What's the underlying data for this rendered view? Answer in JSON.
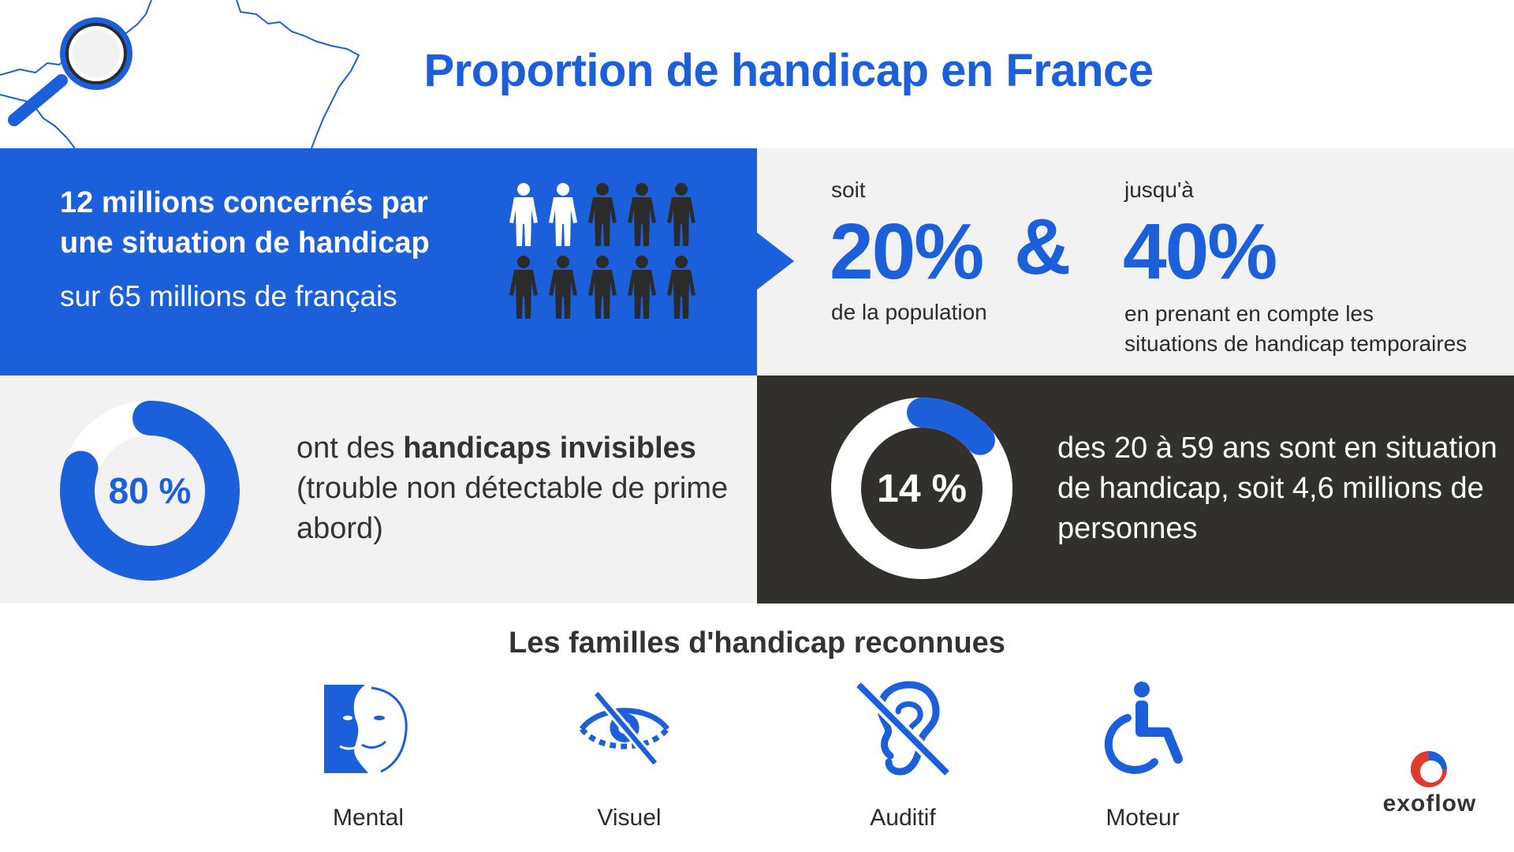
{
  "header": {
    "title": "Proportion de handicap en France",
    "map_icon": "france-map-outline-icon",
    "magnifier_icon": "magnifying-glass-icon"
  },
  "stats": {
    "concerned_line1": "12 millions concernés par",
    "concerned_line2": "une situation de handicap",
    "concerned_sub": "sur 65 millions de français",
    "people_highlighted": 2,
    "people_total": 10,
    "soit_label": "soit",
    "pct_population": "20%",
    "population_label": "de la population",
    "ampersand": "&",
    "jusqua_label": "jusqu'à",
    "pct_temporary": "40%",
    "temporary_line1": "en prenant en compte les",
    "temporary_line2": "situations de handicap temporaires"
  },
  "invisible": {
    "percent_label": "80 %",
    "percent_value": 80,
    "text_before": "ont des ",
    "text_bold": "handicaps invisibles",
    "text_after": "(trouble non détectable de prime abord)"
  },
  "age_group": {
    "percent_label": "14 %",
    "percent_value": 14,
    "text": "des 20 à 59 ans sont en situation de handicap, soit 4,6 millions de personnes"
  },
  "families": {
    "title": "Les familles d'handicap reconnues",
    "items": [
      {
        "label": "Mental",
        "icon": "mental-face-icon"
      },
      {
        "label": "Visuel",
        "icon": "visual-impairment-eye-icon"
      },
      {
        "label": "Auditif",
        "icon": "hearing-impairment-ear-icon"
      },
      {
        "label": "Moteur",
        "icon": "wheelchair-icon"
      }
    ]
  },
  "logo": {
    "text": "exoflow",
    "icon": "exoflow-logo-icon"
  },
  "colors": {
    "blue": "#1c5fdb",
    "dark": "#31302c",
    "light_grey": "#f2f2f2",
    "logo_red": "#e03a2f"
  }
}
